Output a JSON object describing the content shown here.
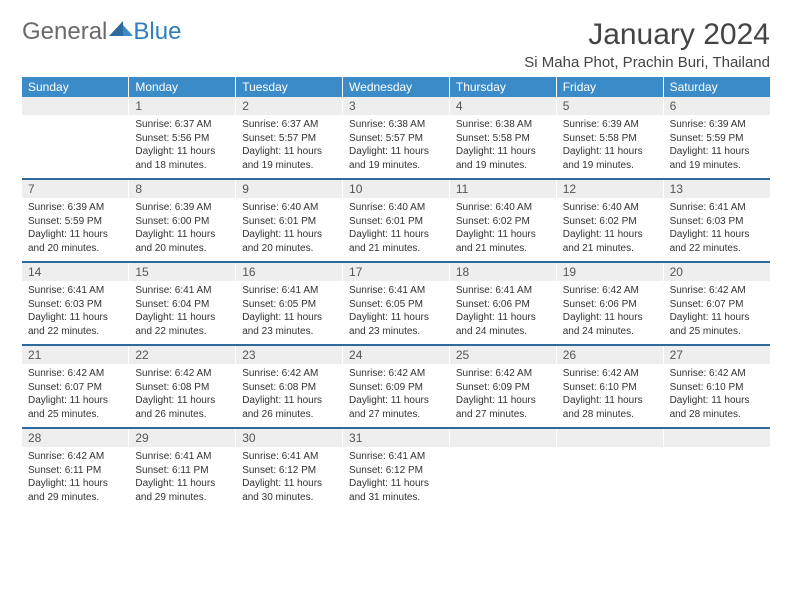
{
  "logo": {
    "general": "General",
    "blue": "Blue"
  },
  "title": "January 2024",
  "location": "Si Maha Phot, Prachin Buri, Thailand",
  "colors": {
    "header_bg": "#3b8bc9",
    "row_divider": "#2d6a9e",
    "daynum_bg": "#eeeeee",
    "text": "#333333"
  },
  "weekdays": [
    "Sunday",
    "Monday",
    "Tuesday",
    "Wednesday",
    "Thursday",
    "Friday",
    "Saturday"
  ],
  "weeks": [
    {
      "nums": [
        "",
        "1",
        "2",
        "3",
        "4",
        "5",
        "6"
      ],
      "cells": [
        {},
        {
          "sr": "Sunrise: 6:37 AM",
          "ss": "Sunset: 5:56 PM",
          "dl": "Daylight: 11 hours and 18 minutes."
        },
        {
          "sr": "Sunrise: 6:37 AM",
          "ss": "Sunset: 5:57 PM",
          "dl": "Daylight: 11 hours and 19 minutes."
        },
        {
          "sr": "Sunrise: 6:38 AM",
          "ss": "Sunset: 5:57 PM",
          "dl": "Daylight: 11 hours and 19 minutes."
        },
        {
          "sr": "Sunrise: 6:38 AM",
          "ss": "Sunset: 5:58 PM",
          "dl": "Daylight: 11 hours and 19 minutes."
        },
        {
          "sr": "Sunrise: 6:39 AM",
          "ss": "Sunset: 5:58 PM",
          "dl": "Daylight: 11 hours and 19 minutes."
        },
        {
          "sr": "Sunrise: 6:39 AM",
          "ss": "Sunset: 5:59 PM",
          "dl": "Daylight: 11 hours and 19 minutes."
        }
      ]
    },
    {
      "nums": [
        "7",
        "8",
        "9",
        "10",
        "11",
        "12",
        "13"
      ],
      "cells": [
        {
          "sr": "Sunrise: 6:39 AM",
          "ss": "Sunset: 5:59 PM",
          "dl": "Daylight: 11 hours and 20 minutes."
        },
        {
          "sr": "Sunrise: 6:39 AM",
          "ss": "Sunset: 6:00 PM",
          "dl": "Daylight: 11 hours and 20 minutes."
        },
        {
          "sr": "Sunrise: 6:40 AM",
          "ss": "Sunset: 6:01 PM",
          "dl": "Daylight: 11 hours and 20 minutes."
        },
        {
          "sr": "Sunrise: 6:40 AM",
          "ss": "Sunset: 6:01 PM",
          "dl": "Daylight: 11 hours and 21 minutes."
        },
        {
          "sr": "Sunrise: 6:40 AM",
          "ss": "Sunset: 6:02 PM",
          "dl": "Daylight: 11 hours and 21 minutes."
        },
        {
          "sr": "Sunrise: 6:40 AM",
          "ss": "Sunset: 6:02 PM",
          "dl": "Daylight: 11 hours and 21 minutes."
        },
        {
          "sr": "Sunrise: 6:41 AM",
          "ss": "Sunset: 6:03 PM",
          "dl": "Daylight: 11 hours and 22 minutes."
        }
      ]
    },
    {
      "nums": [
        "14",
        "15",
        "16",
        "17",
        "18",
        "19",
        "20"
      ],
      "cells": [
        {
          "sr": "Sunrise: 6:41 AM",
          "ss": "Sunset: 6:03 PM",
          "dl": "Daylight: 11 hours and 22 minutes."
        },
        {
          "sr": "Sunrise: 6:41 AM",
          "ss": "Sunset: 6:04 PM",
          "dl": "Daylight: 11 hours and 22 minutes."
        },
        {
          "sr": "Sunrise: 6:41 AM",
          "ss": "Sunset: 6:05 PM",
          "dl": "Daylight: 11 hours and 23 minutes."
        },
        {
          "sr": "Sunrise: 6:41 AM",
          "ss": "Sunset: 6:05 PM",
          "dl": "Daylight: 11 hours and 23 minutes."
        },
        {
          "sr": "Sunrise: 6:41 AM",
          "ss": "Sunset: 6:06 PM",
          "dl": "Daylight: 11 hours and 24 minutes."
        },
        {
          "sr": "Sunrise: 6:42 AM",
          "ss": "Sunset: 6:06 PM",
          "dl": "Daylight: 11 hours and 24 minutes."
        },
        {
          "sr": "Sunrise: 6:42 AM",
          "ss": "Sunset: 6:07 PM",
          "dl": "Daylight: 11 hours and 25 minutes."
        }
      ]
    },
    {
      "nums": [
        "21",
        "22",
        "23",
        "24",
        "25",
        "26",
        "27"
      ],
      "cells": [
        {
          "sr": "Sunrise: 6:42 AM",
          "ss": "Sunset: 6:07 PM",
          "dl": "Daylight: 11 hours and 25 minutes."
        },
        {
          "sr": "Sunrise: 6:42 AM",
          "ss": "Sunset: 6:08 PM",
          "dl": "Daylight: 11 hours and 26 minutes."
        },
        {
          "sr": "Sunrise: 6:42 AM",
          "ss": "Sunset: 6:08 PM",
          "dl": "Daylight: 11 hours and 26 minutes."
        },
        {
          "sr": "Sunrise: 6:42 AM",
          "ss": "Sunset: 6:09 PM",
          "dl": "Daylight: 11 hours and 27 minutes."
        },
        {
          "sr": "Sunrise: 6:42 AM",
          "ss": "Sunset: 6:09 PM",
          "dl": "Daylight: 11 hours and 27 minutes."
        },
        {
          "sr": "Sunrise: 6:42 AM",
          "ss": "Sunset: 6:10 PM",
          "dl": "Daylight: 11 hours and 28 minutes."
        },
        {
          "sr": "Sunrise: 6:42 AM",
          "ss": "Sunset: 6:10 PM",
          "dl": "Daylight: 11 hours and 28 minutes."
        }
      ]
    },
    {
      "nums": [
        "28",
        "29",
        "30",
        "31",
        "",
        "",
        ""
      ],
      "cells": [
        {
          "sr": "Sunrise: 6:42 AM",
          "ss": "Sunset: 6:11 PM",
          "dl": "Daylight: 11 hours and 29 minutes."
        },
        {
          "sr": "Sunrise: 6:41 AM",
          "ss": "Sunset: 6:11 PM",
          "dl": "Daylight: 11 hours and 29 minutes."
        },
        {
          "sr": "Sunrise: 6:41 AM",
          "ss": "Sunset: 6:12 PM",
          "dl": "Daylight: 11 hours and 30 minutes."
        },
        {
          "sr": "Sunrise: 6:41 AM",
          "ss": "Sunset: 6:12 PM",
          "dl": "Daylight: 11 hours and 31 minutes."
        },
        {},
        {},
        {}
      ]
    }
  ]
}
